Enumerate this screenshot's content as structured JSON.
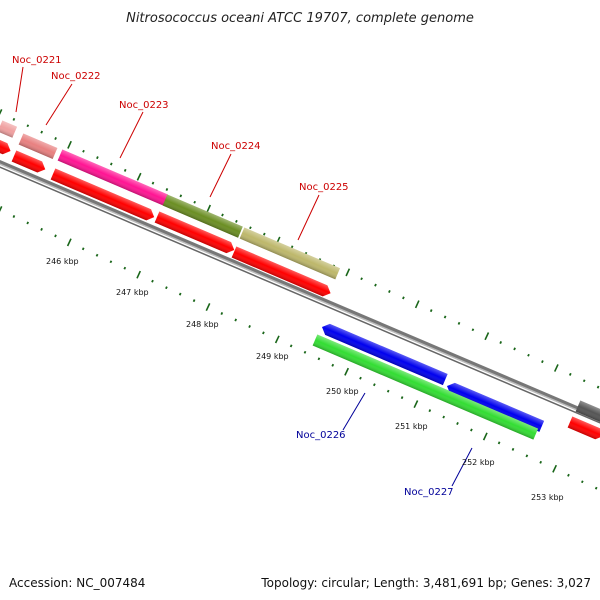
{
  "title": "Nitrosococcus oceani ATCC 19707, complete genome",
  "gene_labels": {
    "noc_0221": "Noc_0221",
    "noc_0222": "Noc_0222",
    "noc_0223": "Noc_0223",
    "noc_0224": "Noc_0224",
    "noc_0225": "Noc_0225",
    "noc_0226": "Noc_0226",
    "noc_0227": "Noc_0227"
  },
  "kbp_labels": [
    "246 kbp",
    "247 kbp",
    "248 kbp",
    "249 kbp",
    "250 kbp",
    "251 kbp",
    "252 kbp",
    "253 kbp"
  ],
  "footer": {
    "accession": "Accession: NC_007484",
    "summary": "Topology: circular; Length: 3,481,691 bp; Genes: 3,027"
  },
  "colors": {
    "forward_label": "#cc0000",
    "reverse_label": "#000099",
    "cds_red": "#ff0000",
    "cds_blue": "#0000ee",
    "gene_green": "#33dd33",
    "backbone": "#808080",
    "tick": "#1a661a"
  }
}
